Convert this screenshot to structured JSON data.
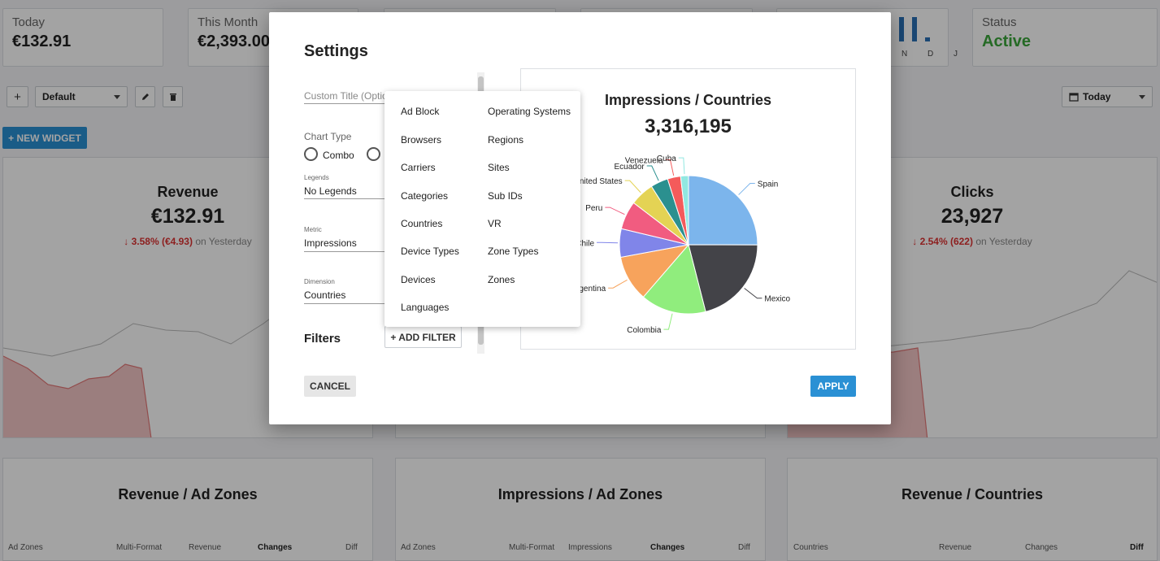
{
  "stats": [
    {
      "label": "Today",
      "value": "€132.91"
    },
    {
      "label": "This Month",
      "value": "€2,393.00"
    },
    {
      "label": "Status",
      "value": "Active"
    }
  ],
  "mini_chart": {
    "axis": "N D J",
    "values": [
      0.95,
      0.95,
      0.15
    ]
  },
  "toolbar": {
    "add_label": "+",
    "dashboard_select": "Default",
    "date_select": "Today",
    "new_widget": "+ NEW WIDGET"
  },
  "widgets": {
    "revenue": {
      "title": "Revenue",
      "value": "€132.91",
      "change": "↓ 3.58% (€4.93)",
      "change_suffix": "on Yesterday"
    },
    "clicks": {
      "title": "Clicks",
      "value": "23,927",
      "change": "↓ 2.54% (622)",
      "change_suffix": "on Yesterday"
    }
  },
  "bottom_widgets": [
    {
      "title": "Revenue / Ad Zones",
      "columns": [
        "Ad Zones",
        "Multi-Format",
        "Revenue",
        "Changes",
        "Diff"
      ]
    },
    {
      "title": "Impressions / Ad Zones",
      "columns": [
        "Ad Zones",
        "Multi-Format",
        "Impressions",
        "Changes",
        "Diff"
      ]
    },
    {
      "title": "Revenue / Countries",
      "columns": [
        "Countries",
        "Revenue",
        "Changes",
        "Diff"
      ]
    }
  ],
  "modal": {
    "title": "Settings",
    "custom_title_placeholder": "Custom Title (Optional)",
    "chart_type_label": "Chart Type",
    "chart_type_option": "Combo",
    "legends_label": "Legends",
    "legends_value": "No Legends",
    "metric_label": "Metric",
    "metric_value": "Impressions",
    "dimension_label": "Dimension",
    "dimension_value": "Countries",
    "filters_label": "Filters",
    "add_filter": "+ ADD FILTER",
    "cancel": "CANCEL",
    "apply": "APPLY"
  },
  "dropdown": {
    "col1": [
      "Ad Block",
      "Browsers",
      "Carriers",
      "Categories",
      "Countries",
      "Device Types",
      "Devices",
      "Languages"
    ],
    "col2": [
      "Operating Systems",
      "Regions",
      "Sites",
      "Sub IDs",
      "VR",
      "Zone Types",
      "Zones"
    ]
  },
  "preview": {
    "title": "Impressions / Countries",
    "value": "3,316,195"
  },
  "chart_data": {
    "type": "pie",
    "title": "Impressions / Countries",
    "total": "3,316,195",
    "categories": [
      "Spain",
      "Mexico",
      "Colombia",
      "Argentina",
      "Chile",
      "Peru",
      "United States",
      "Ecuador",
      "Venezuela",
      "Cuba"
    ],
    "values": [
      24.5,
      20.5,
      15,
      10.5,
      6.5,
      6.5,
      5.5,
      4,
      3,
      1.8
    ],
    "colors": [
      "#7cb5ec",
      "#434348",
      "#90ed7d",
      "#f7a35c",
      "#8085e9",
      "#f15c80",
      "#e4d354",
      "#2b908f",
      "#f45b5b",
      "#91e8e1"
    ]
  }
}
